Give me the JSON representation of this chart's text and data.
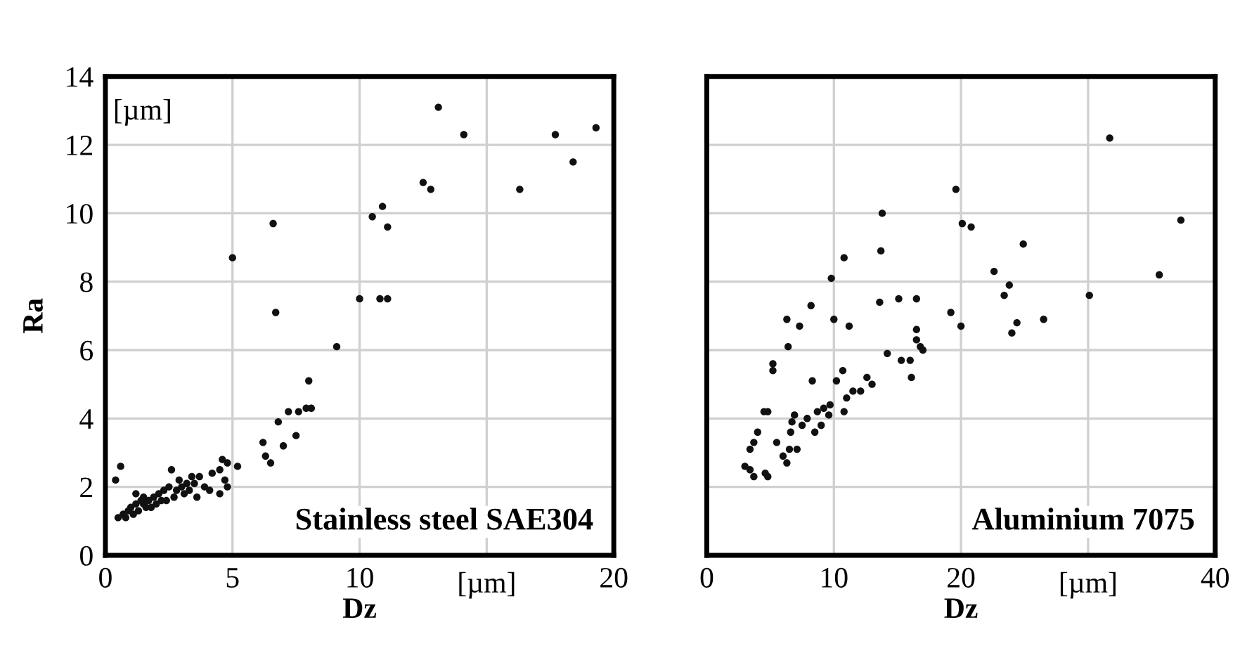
{
  "chart_data": [
    {
      "type": "scatter",
      "xlabel": "Dz",
      "ylabel": "Ra",
      "annotations": [
        "[µm]",
        "[µm]",
        "Stainless steel SAE304"
      ],
      "xlim": [
        0,
        20
      ],
      "ylim": [
        0,
        14
      ],
      "xticks": [
        0,
        5,
        10,
        {
          "value": 15,
          "label": null
        },
        20
      ],
      "yticks": [
        0,
        2,
        4,
        6,
        8,
        10,
        12,
        14
      ],
      "grid": true,
      "marker": "circle",
      "series": [
        {
          "color": "#111111",
          "x": [
            13.1,
            14.1,
            17.7,
            19.3,
            18.4,
            12.5,
            12.8,
            16.3,
            10.5,
            10.9,
            11.1,
            6.6,
            5.0,
            6.7,
            10.0,
            10.8,
            11.1,
            9.1,
            8.0,
            7.2,
            7.6,
            7.9,
            8.1,
            6.8,
            7.0,
            7.5,
            6.2,
            6.3,
            6.5,
            5.2,
            4.8,
            4.6,
            4.2,
            4.5,
            4.7,
            4.8,
            4.5,
            0.4,
            0.6,
            2.6,
            1.2,
            0.5,
            0.7,
            0.9,
            1.0,
            1.2,
            1.4,
            1.5,
            1.7,
            1.9,
            2.1,
            2.3,
            2.5,
            2.8,
            3.0,
            3.3,
            3.5,
            3.7,
            3.9,
            4.1,
            1.1,
            1.6,
            2.0,
            2.4,
            2.7,
            3.1,
            3.6,
            1.3,
            0.8,
            1.8,
            2.2,
            1.5,
            2.9,
            3.2,
            3.4
          ],
          "values": [
            13.1,
            12.3,
            12.3,
            12.5,
            11.5,
            10.9,
            10.7,
            10.7,
            9.9,
            10.2,
            9.6,
            9.7,
            8.7,
            7.1,
            7.5,
            7.5,
            7.5,
            6.1,
            5.1,
            4.2,
            4.2,
            4.3,
            4.3,
            3.9,
            3.2,
            3.5,
            3.3,
            2.9,
            2.7,
            2.6,
            2.7,
            2.8,
            2.4,
            2.5,
            2.2,
            2.0,
            1.8,
            2.2,
            2.6,
            2.5,
            1.8,
            1.1,
            1.2,
            1.3,
            1.4,
            1.5,
            1.6,
            1.5,
            1.6,
            1.7,
            1.8,
            1.9,
            2.0,
            1.9,
            2.0,
            1.9,
            2.1,
            2.3,
            2.0,
            1.9,
            1.2,
            1.4,
            1.5,
            1.6,
            1.7,
            1.8,
            1.7,
            1.3,
            1.1,
            1.4,
            1.6,
            1.7,
            2.2,
            2.1,
            2.3
          ]
        }
      ]
    },
    {
      "type": "scatter",
      "xlabel": "Dz",
      "annotations": [
        "[µm]",
        "Aluminium 7075"
      ],
      "xlim": [
        0,
        40
      ],
      "ylim": [
        0,
        14
      ],
      "xticks": [
        0,
        10,
        20,
        {
          "value": 30,
          "label": null
        },
        40
      ],
      "yticks": [
        0,
        2,
        4,
        6,
        8,
        10,
        12,
        14
      ],
      "tick_labels": "x",
      "grid": true,
      "marker": "circle",
      "series": [
        {
          "color": "#111111",
          "x": [
            31.7,
            19.6,
            13.8,
            20.1,
            20.8,
            37.3,
            24.9,
            13.7,
            10.8,
            9.8,
            22.6,
            23.8,
            23.4,
            35.6,
            30.1,
            8.2,
            13.6,
            15.1,
            16.5,
            6.3,
            7.3,
            10.0,
            11.2,
            19.2,
            20.0,
            26.5,
            24.4,
            24.0,
            16.5,
            16.5,
            16.8,
            17.0,
            6.4,
            5.2,
            5.2,
            14.2,
            15.3,
            16.0,
            16.1,
            10.7,
            10.2,
            8.3,
            12.6,
            13.0,
            12.1,
            11.5,
            11.0,
            10.8,
            9.7,
            9.2,
            9.6,
            8.7,
            9.0,
            8.5,
            7.9,
            7.5,
            6.9,
            6.7,
            4.5,
            4.8,
            4.0,
            3.7,
            3.4,
            6.6,
            5.5,
            6.0,
            6.5,
            7.1,
            6.3,
            3.0,
            3.4,
            3.7,
            4.6,
            4.8
          ],
          "values": [
            12.2,
            10.7,
            10.0,
            9.7,
            9.6,
            9.8,
            9.1,
            8.9,
            8.7,
            8.1,
            8.3,
            7.9,
            7.6,
            8.2,
            7.6,
            7.3,
            7.4,
            7.5,
            7.5,
            6.9,
            6.7,
            6.9,
            6.7,
            7.1,
            6.7,
            6.9,
            6.8,
            6.5,
            6.6,
            6.3,
            6.1,
            6.0,
            6.1,
            5.6,
            5.4,
            5.9,
            5.7,
            5.7,
            5.2,
            5.4,
            5.1,
            5.1,
            5.2,
            5.0,
            4.8,
            4.8,
            4.6,
            4.2,
            4.4,
            4.3,
            4.1,
            4.2,
            3.8,
            3.6,
            4.0,
            3.8,
            4.1,
            3.9,
            4.2,
            4.2,
            3.6,
            3.3,
            3.1,
            3.6,
            3.3,
            2.9,
            3.1,
            3.1,
            2.7,
            2.6,
            2.5,
            2.3,
            2.4,
            2.3
          ]
        }
      ]
    }
  ]
}
